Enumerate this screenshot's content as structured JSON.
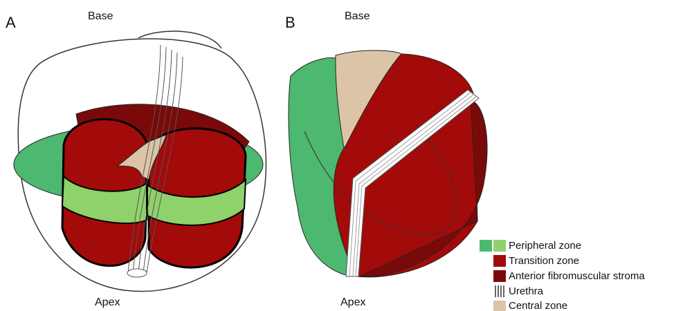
{
  "panels": [
    {
      "label": "A",
      "top_label": "Base",
      "bottom_label": "Apex"
    },
    {
      "label": "B",
      "top_label": "Base",
      "bottom_label": "Apex"
    }
  ],
  "legend": [
    {
      "label": "Peripheral zone"
    },
    {
      "label": "Transition zone"
    },
    {
      "label": "Anterior fibromuscular stroma"
    },
    {
      "label": "Urethra"
    },
    {
      "label": "Central zone"
    }
  ]
}
